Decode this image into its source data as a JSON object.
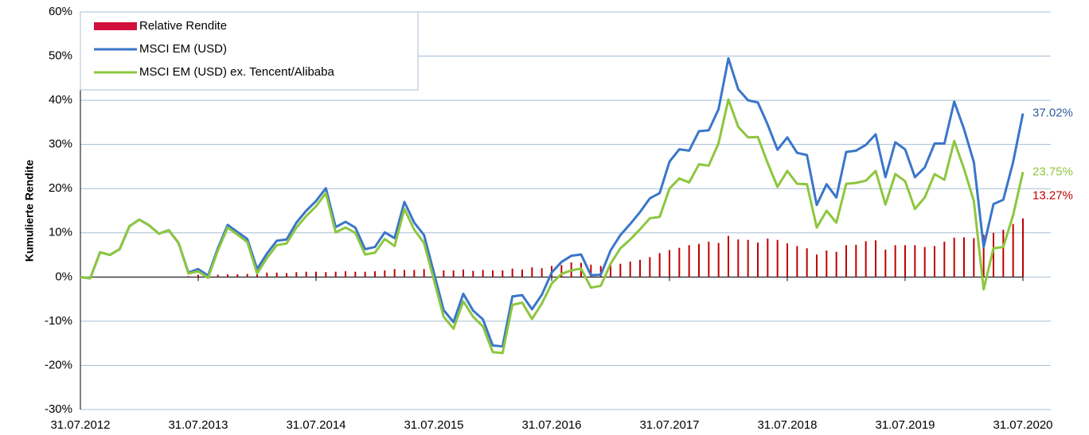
{
  "chart_data": {
    "type": "line-bar",
    "y_label": "Kumulierte Rendite",
    "categories": [
      "31.07.2012",
      null,
      null,
      null,
      null,
      null,
      null,
      null,
      null,
      null,
      null,
      null,
      "31.07.2013",
      null,
      null,
      null,
      null,
      null,
      null,
      null,
      null,
      null,
      null,
      null,
      "31.07.2014",
      null,
      null,
      null,
      null,
      null,
      null,
      null,
      null,
      null,
      null,
      null,
      "31.07.2015",
      null,
      null,
      null,
      null,
      null,
      null,
      null,
      null,
      null,
      null,
      null,
      "31.07.2016",
      null,
      null,
      null,
      null,
      null,
      null,
      null,
      null,
      null,
      null,
      null,
      "31.07.2017",
      null,
      null,
      null,
      null,
      null,
      null,
      null,
      null,
      null,
      null,
      null,
      "31.07.2018",
      null,
      null,
      null,
      null,
      null,
      null,
      null,
      null,
      null,
      null,
      null,
      "31.07.2019",
      null,
      null,
      null,
      null,
      null,
      null,
      null,
      null,
      null,
      null,
      null,
      "31.07.2020"
    ],
    "ylim": [
      -30,
      60
    ],
    "yticks": [
      {
        "value": -30,
        "label": "-30%"
      },
      {
        "value": -20,
        "label": "-20%"
      },
      {
        "value": -10,
        "label": "-10%"
      },
      {
        "value": 0,
        "label": "0%"
      },
      {
        "value": 10,
        "label": "10%"
      },
      {
        "value": 20,
        "label": "20%"
      },
      {
        "value": 30,
        "label": "30%"
      },
      {
        "value": 40,
        "label": "40%"
      },
      {
        "value": 50,
        "label": "50%"
      },
      {
        "value": 60,
        "label": "60%"
      }
    ],
    "grid": true,
    "legend": "top-left",
    "series": [
      {
        "name": "Relative Rendite",
        "kind": "bar",
        "color": "#c00000",
        "label_color": "#c00000",
        "end_label": "13.27%",
        "values": [
          0,
          0,
          0,
          0,
          0,
          0,
          0,
          0,
          0,
          0,
          0,
          0.2,
          0.5,
          0.5,
          0.5,
          0.6,
          0.6,
          0.7,
          1.0,
          1.0,
          1.0,
          0.9,
          1.1,
          1.2,
          1.2,
          1.1,
          1.2,
          1.3,
          1.2,
          1.2,
          1.3,
          1.5,
          1.8,
          1.6,
          1.6,
          1.8,
          1.6,
          1.5,
          1.5,
          1.7,
          1.4,
          1.6,
          1.5,
          1.5,
          1.9,
          1.7,
          2.2,
          2.0,
          2.5,
          2.7,
          3.3,
          3.2,
          2.8,
          2.5,
          3.0,
          3.0,
          3.5,
          3.9,
          4.5,
          5.4,
          6.1,
          6.6,
          7.2,
          7.5,
          8.0,
          7.7,
          9.3,
          8.5,
          8.4,
          7.8,
          8.7,
          8.4,
          7.6,
          7.0,
          6.5,
          5.1,
          6.0,
          5.7,
          7.2,
          7.3,
          8.1,
          8.3,
          6.2,
          7.2,
          7.2,
          7.2,
          6.8,
          7.0,
          8.0,
          8.9,
          9.0,
          8.8,
          9.6,
          10.0,
          10.7,
          12.0,
          13.27
        ]
      },
      {
        "name": "MSCI EM (USD)",
        "kind": "line",
        "color": "#3a76c9",
        "label_color": "#2e5f9e",
        "end_label": "37.02%",
        "values": [
          0,
          -0.3,
          5.6,
          5.0,
          6.3,
          11.5,
          13.0,
          11.7,
          9.8,
          10.6,
          7.7,
          1.0,
          1.8,
          0.3,
          6.5,
          11.8,
          10.2,
          8.6,
          1.8,
          5.3,
          8.2,
          8.5,
          12.3,
          15.0,
          17.2,
          20.1,
          11.3,
          12.5,
          11.2,
          6.3,
          6.8,
          10.1,
          8.8,
          17.0,
          12.3,
          9.5,
          1.0,
          -7.5,
          -10.2,
          -3.8,
          -7.6,
          -9.6,
          -15.5,
          -15.7,
          -4.4,
          -4.1,
          -7.3,
          -4.0,
          1.0,
          3.4,
          4.8,
          5.1,
          0.4,
          0.5,
          6.0,
          9.5,
          12.0,
          14.7,
          17.8,
          19.0,
          26.1,
          28.9,
          28.6,
          33.0,
          33.2,
          38.0,
          49.5,
          42.5,
          40.0,
          39.5,
          34.5,
          28.8,
          31.6,
          28.1,
          27.6,
          16.3,
          21.0,
          18.0,
          28.3,
          28.6,
          29.9,
          32.3,
          22.6,
          30.5,
          28.9,
          22.6,
          24.8,
          30.2,
          30.2,
          39.7,
          33.5,
          26.0,
          6.8,
          16.5,
          17.5,
          26.0,
          37.02
        ]
      },
      {
        "name": "MSCI EM (USD) ex. Tencent/Alibaba",
        "kind": "line",
        "color": "#8dc63f",
        "label_color": "#8dc63f",
        "end_label": "23.75%",
        "values": [
          0,
          -0.3,
          5.6,
          5.0,
          6.3,
          11.5,
          13.0,
          11.7,
          9.8,
          10.6,
          7.7,
          0.8,
          1.3,
          -0.2,
          6.0,
          11.2,
          9.6,
          7.9,
          0.8,
          4.3,
          7.2,
          7.6,
          11.2,
          13.8,
          16.0,
          19.0,
          10.1,
          11.2,
          10.0,
          5.1,
          5.5,
          8.6,
          7.0,
          15.4,
          10.7,
          7.7,
          -0.6,
          -9.0,
          -11.7,
          -5.5,
          -9.0,
          -11.2,
          -17.0,
          -17.2,
          -6.3,
          -5.8,
          -9.5,
          -6.0,
          -1.5,
          0.7,
          1.5,
          1.9,
          -2.4,
          -2.0,
          3.0,
          6.5,
          8.5,
          10.8,
          13.3,
          13.6,
          20.0,
          22.3,
          21.4,
          25.5,
          25.2,
          30.3,
          40.2,
          34.0,
          31.6,
          31.7,
          25.8,
          20.4,
          24.0,
          21.1,
          21.0,
          11.2,
          15.0,
          12.3,
          21.1,
          21.3,
          21.8,
          24.0,
          16.4,
          23.3,
          21.7,
          15.4,
          18.0,
          23.3,
          22.0,
          30.8,
          24.5,
          17.2,
          -2.8,
          6.5,
          6.8,
          14.0,
          23.75
        ]
      }
    ]
  }
}
